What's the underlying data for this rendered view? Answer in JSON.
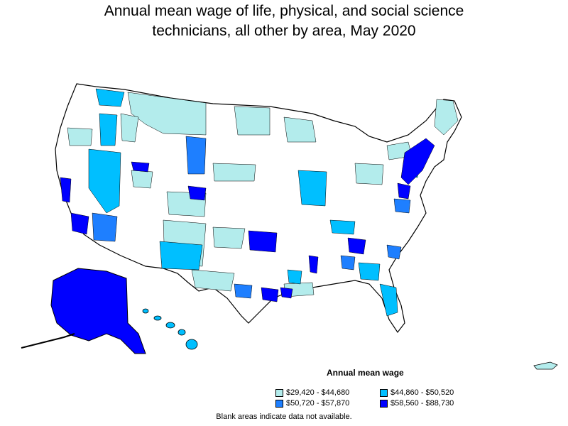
{
  "title_line1": "Annual mean wage of life, physical, and social science",
  "title_line2": "technicians, all other by area, May 2020",
  "legend": {
    "title": "Annual mean wage",
    "items": [
      {
        "label": "$29,420 - $44,680",
        "color": "#b3ecec"
      },
      {
        "label": "$44,860 - $50,520",
        "color": "#00bfff"
      },
      {
        "label": "$50,720 - $57,870",
        "color": "#1e7fff"
      },
      {
        "label": "$58,560 - $88,730",
        "color": "#0000ff"
      }
    ]
  },
  "note": "Blank areas indicate data not available.",
  "colors": {
    "blank": "#ffffff",
    "border": "#000000",
    "tier1": "#b3ecec",
    "tier2": "#00bfff",
    "tier3": "#1e7fff",
    "tier4": "#0000ff"
  }
}
